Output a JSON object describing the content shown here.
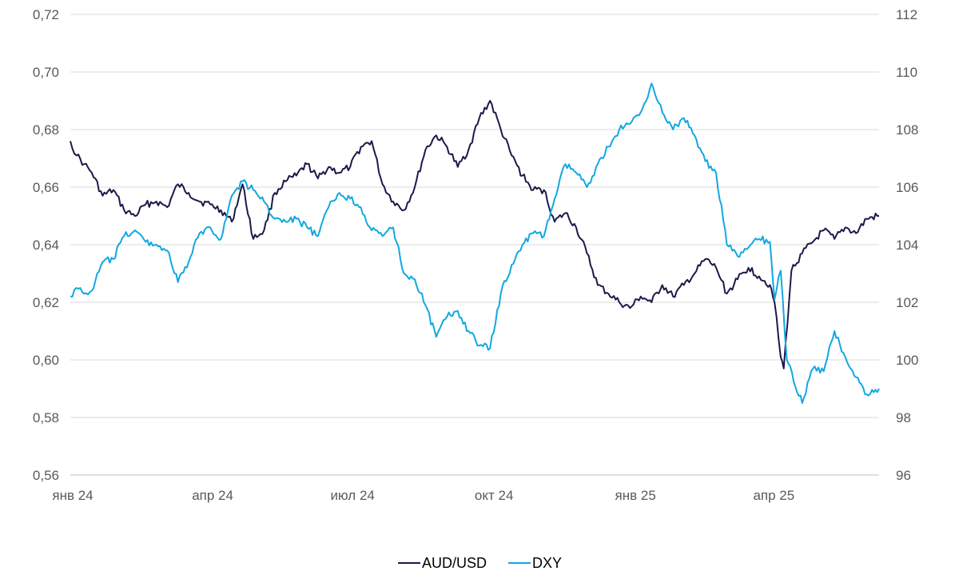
{
  "chart_data": {
    "type": "line",
    "title": "",
    "colors": {
      "aud": "#1b1a4a",
      "dxy": "#12a8e0",
      "grid": "#d9d9d9",
      "axis_text": "#595959"
    },
    "x_tick_labels": [
      "янв 24",
      "апр 24",
      "июл 24",
      "окт 24",
      "янв 25",
      "апр 25"
    ],
    "x_range": [
      "2024-01-01",
      "2025-06-10"
    ],
    "left_axis": {
      "min": 0.56,
      "max": 0.72,
      "step": 0.02,
      "ticks": [
        "0,56",
        "0,58",
        "0,60",
        "0,62",
        "0,64",
        "0,66",
        "0,68",
        "0,70",
        "0,72"
      ]
    },
    "right_axis": {
      "min": 96,
      "max": 112,
      "step": 2,
      "ticks": [
        "96",
        "98",
        "100",
        "102",
        "104",
        "106",
        "108",
        "110",
        "112"
      ]
    },
    "legend_position": "bottom-center",
    "grid": true,
    "series": [
      {
        "name": "AUD/USD",
        "axis": "left",
        "points": [
          [
            "2024-01-01",
            0.676
          ],
          [
            "2024-01-05",
            0.671
          ],
          [
            "2024-01-10",
            0.668
          ],
          [
            "2024-01-15",
            0.665
          ],
          [
            "2024-01-22",
            0.657
          ],
          [
            "2024-01-29",
            0.659
          ],
          [
            "2024-02-05",
            0.652
          ],
          [
            "2024-02-12",
            0.65
          ],
          [
            "2024-02-19",
            0.654
          ],
          [
            "2024-02-26",
            0.655
          ],
          [
            "2024-03-04",
            0.653
          ],
          [
            "2024-03-11",
            0.661
          ],
          [
            "2024-03-18",
            0.658
          ],
          [
            "2024-03-25",
            0.655
          ],
          [
            "2024-04-01",
            0.654
          ],
          [
            "2024-04-08",
            0.652
          ],
          [
            "2024-04-15",
            0.648
          ],
          [
            "2024-04-22",
            0.661
          ],
          [
            "2024-04-29",
            0.642
          ],
          [
            "2024-05-06",
            0.645
          ],
          [
            "2024-05-13",
            0.658
          ],
          [
            "2024-05-20",
            0.662
          ],
          [
            "2024-05-27",
            0.664
          ],
          [
            "2024-06-03",
            0.668
          ],
          [
            "2024-06-10",
            0.663
          ],
          [
            "2024-06-17",
            0.667
          ],
          [
            "2024-06-24",
            0.665
          ],
          [
            "2024-07-01",
            0.667
          ],
          [
            "2024-07-08",
            0.674
          ],
          [
            "2024-07-15",
            0.676
          ],
          [
            "2024-07-22",
            0.661
          ],
          [
            "2024-07-29",
            0.655
          ],
          [
            "2024-08-05",
            0.652
          ],
          [
            "2024-08-12",
            0.66
          ],
          [
            "2024-08-19",
            0.673
          ],
          [
            "2024-08-26",
            0.678
          ],
          [
            "2024-09-02",
            0.674
          ],
          [
            "2024-09-09",
            0.667
          ],
          [
            "2024-09-16",
            0.673
          ],
          [
            "2024-09-23",
            0.684
          ],
          [
            "2024-09-30",
            0.69
          ],
          [
            "2024-10-07",
            0.68
          ],
          [
            "2024-10-14",
            0.671
          ],
          [
            "2024-10-21",
            0.664
          ],
          [
            "2024-10-28",
            0.659
          ],
          [
            "2024-11-04",
            0.659
          ],
          [
            "2024-11-11",
            0.648
          ],
          [
            "2024-11-18",
            0.651
          ],
          [
            "2024-11-25",
            0.646
          ],
          [
            "2024-12-02",
            0.637
          ],
          [
            "2024-12-09",
            0.626
          ],
          [
            "2024-12-16",
            0.623
          ],
          [
            "2024-12-23",
            0.62
          ],
          [
            "2024-12-30",
            0.618
          ],
          [
            "2025-01-06",
            0.622
          ],
          [
            "2025-01-13",
            0.62
          ],
          [
            "2025-01-20",
            0.626
          ],
          [
            "2025-01-27",
            0.622
          ],
          [
            "2025-02-03",
            0.626
          ],
          [
            "2025-02-10",
            0.63
          ],
          [
            "2025-02-17",
            0.635
          ],
          [
            "2025-02-24",
            0.632
          ],
          [
            "2025-03-03",
            0.623
          ],
          [
            "2025-03-10",
            0.628
          ],
          [
            "2025-03-17",
            0.632
          ],
          [
            "2025-03-24",
            0.629
          ],
          [
            "2025-03-31",
            0.626
          ],
          [
            "2025-04-03",
            0.62
          ],
          [
            "2025-04-07",
            0.601
          ],
          [
            "2025-04-09",
            0.597
          ],
          [
            "2025-04-14",
            0.631
          ],
          [
            "2025-04-21",
            0.637
          ],
          [
            "2025-04-28",
            0.641
          ],
          [
            "2025-05-05",
            0.645
          ],
          [
            "2025-05-12",
            0.642
          ],
          [
            "2025-05-19",
            0.646
          ],
          [
            "2025-05-26",
            0.644
          ],
          [
            "2025-06-02",
            0.649
          ],
          [
            "2025-06-10",
            0.65
          ]
        ]
      },
      {
        "name": "DXY",
        "axis": "right",
        "points": [
          [
            "2024-01-01",
            102.2
          ],
          [
            "2024-01-05",
            102.5
          ],
          [
            "2024-01-10",
            102.3
          ],
          [
            "2024-01-15",
            102.4
          ],
          [
            "2024-01-22",
            103.4
          ],
          [
            "2024-01-29",
            103.5
          ],
          [
            "2024-02-05",
            104.3
          ],
          [
            "2024-02-12",
            104.5
          ],
          [
            "2024-02-19",
            104.1
          ],
          [
            "2024-02-26",
            104.0
          ],
          [
            "2024-03-04",
            103.8
          ],
          [
            "2024-03-11",
            102.7
          ],
          [
            "2024-03-18",
            103.4
          ],
          [
            "2024-03-25",
            104.4
          ],
          [
            "2024-04-01",
            104.6
          ],
          [
            "2024-04-08",
            104.2
          ],
          [
            "2024-04-15",
            105.7
          ],
          [
            "2024-04-22",
            106.2
          ],
          [
            "2024-04-29",
            105.9
          ],
          [
            "2024-05-06",
            105.5
          ],
          [
            "2024-05-13",
            104.9
          ],
          [
            "2024-05-20",
            104.8
          ],
          [
            "2024-05-27",
            104.9
          ],
          [
            "2024-06-03",
            104.6
          ],
          [
            "2024-06-10",
            104.3
          ],
          [
            "2024-06-17",
            105.3
          ],
          [
            "2024-06-24",
            105.8
          ],
          [
            "2024-07-01",
            105.6
          ],
          [
            "2024-07-08",
            105.3
          ],
          [
            "2024-07-15",
            104.5
          ],
          [
            "2024-07-22",
            104.3
          ],
          [
            "2024-07-29",
            104.6
          ],
          [
            "2024-08-05",
            103.0
          ],
          [
            "2024-08-12",
            102.8
          ],
          [
            "2024-08-19",
            101.9
          ],
          [
            "2024-08-26",
            100.8
          ],
          [
            "2024-09-02",
            101.5
          ],
          [
            "2024-09-09",
            101.7
          ],
          [
            "2024-09-16",
            101.0
          ],
          [
            "2024-09-23",
            100.5
          ],
          [
            "2024-09-30",
            100.4
          ],
          [
            "2024-10-07",
            102.3
          ],
          [
            "2024-10-14",
            103.3
          ],
          [
            "2024-10-21",
            104.0
          ],
          [
            "2024-10-28",
            104.4
          ],
          [
            "2024-11-04",
            104.3
          ],
          [
            "2024-11-11",
            105.6
          ],
          [
            "2024-11-18",
            106.8
          ],
          [
            "2024-11-25",
            106.5
          ],
          [
            "2024-12-02",
            106.0
          ],
          [
            "2024-12-09",
            106.8
          ],
          [
            "2024-12-16",
            107.4
          ],
          [
            "2024-12-23",
            108.0
          ],
          [
            "2024-12-30",
            108.2
          ],
          [
            "2025-01-06",
            108.6
          ],
          [
            "2025-01-13",
            109.6
          ],
          [
            "2025-01-20",
            108.6
          ],
          [
            "2025-01-27",
            108.0
          ],
          [
            "2025-02-03",
            108.4
          ],
          [
            "2025-02-10",
            107.8
          ],
          [
            "2025-02-17",
            106.9
          ],
          [
            "2025-02-24",
            106.5
          ],
          [
            "2025-03-03",
            104.0
          ],
          [
            "2025-03-10",
            103.6
          ],
          [
            "2025-03-17",
            103.9
          ],
          [
            "2025-03-24",
            104.2
          ],
          [
            "2025-03-31",
            104.1
          ],
          [
            "2025-04-03",
            102.1
          ],
          [
            "2025-04-07",
            103.1
          ],
          [
            "2025-04-11",
            100.0
          ],
          [
            "2025-04-21",
            98.5
          ],
          [
            "2025-04-28",
            99.7
          ],
          [
            "2025-05-05",
            99.6
          ],
          [
            "2025-05-12",
            101.0
          ],
          [
            "2025-05-19",
            100.1
          ],
          [
            "2025-05-26",
            99.4
          ],
          [
            "2025-06-02",
            98.8
          ],
          [
            "2025-06-10",
            99.0
          ]
        ]
      }
    ]
  }
}
